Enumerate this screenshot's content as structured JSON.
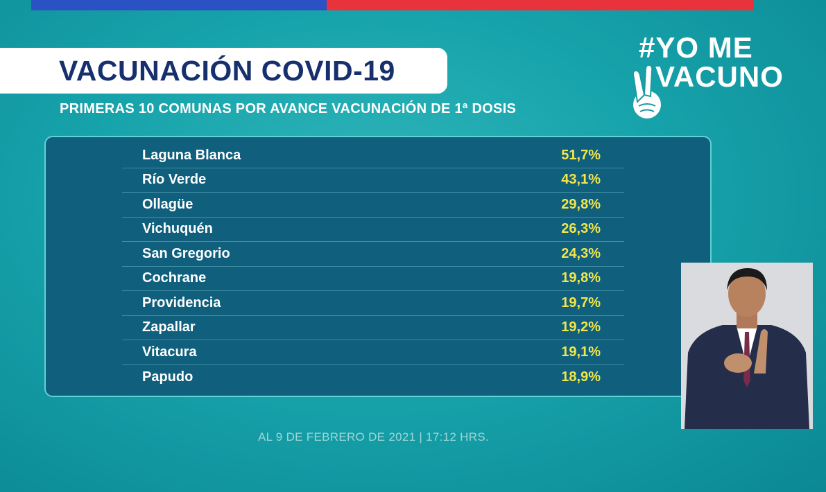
{
  "colors": {
    "background": "#17a3ab",
    "title_text": "#16306e",
    "panel": "#0f5f7d",
    "panel_border": "#5fd2d4",
    "value_text": "#f2e64a",
    "flag_blue": "#2b52c4",
    "flag_red": "#e8323c"
  },
  "title": "VACUNACIÓN COVID-19",
  "subtitle": "PRIMERAS 10 COMUNAS POR AVANCE VACUNACIÓN DE 1ª DOSIS",
  "logo": {
    "line1": "#YO ME",
    "line2": "VACUNO",
    "icon": "victory-hand-icon"
  },
  "rows": [
    {
      "name": "Laguna Blanca",
      "value": "51,7%"
    },
    {
      "name": "Río Verde",
      "value": "43,1%"
    },
    {
      "name": "Ollagüe",
      "value": "29,8%"
    },
    {
      "name": "Vichuquén",
      "value": "26,3%"
    },
    {
      "name": "San Gregorio",
      "value": "24,3%"
    },
    {
      "name": "Cochrane",
      "value": "19,8%"
    },
    {
      "name": "Providencia",
      "value": "19,7%"
    },
    {
      "name": "Zapallar",
      "value": "19,2%"
    },
    {
      "name": "Vitacura",
      "value": "19,1%"
    },
    {
      "name": "Papudo",
      "value": "18,9%"
    }
  ],
  "footer": "AL 9 DE FEBRERO DE 2021 | 17:12 HRS."
}
